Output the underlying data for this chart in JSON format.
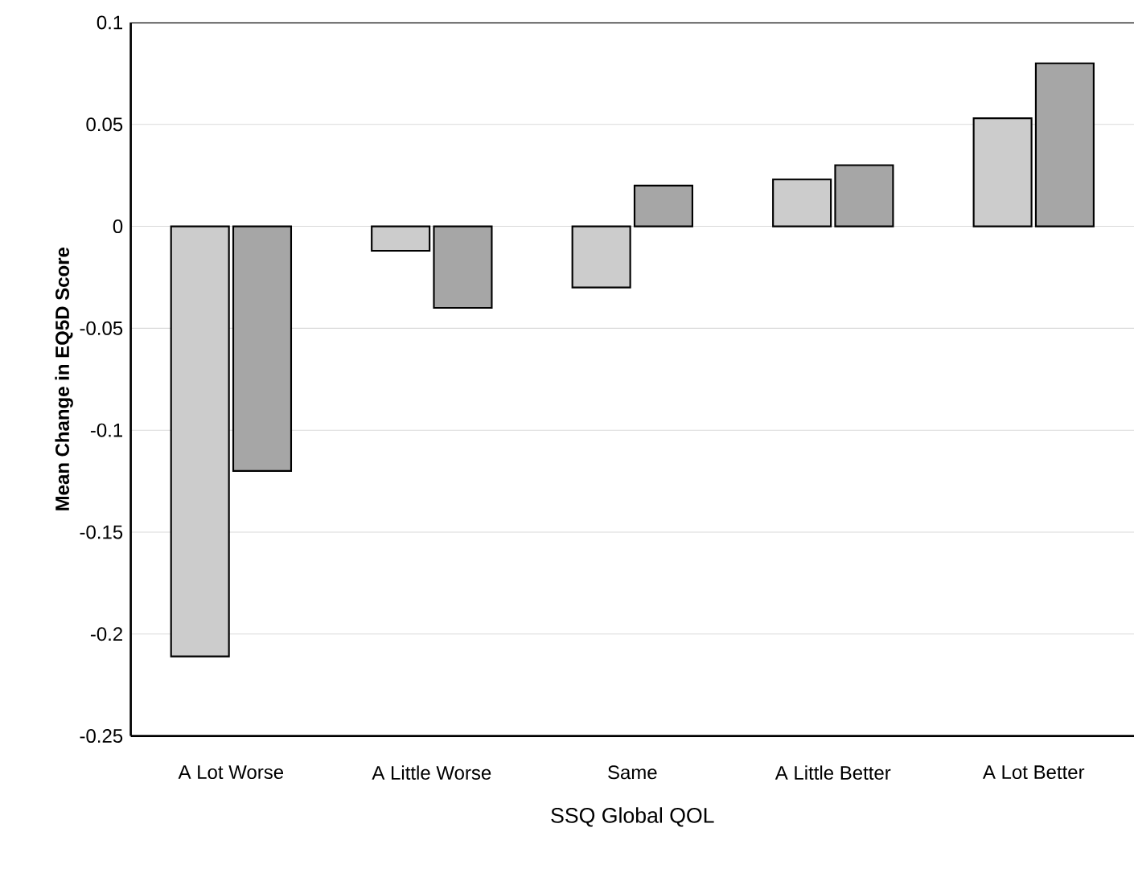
{
  "chart_data": {
    "type": "bar",
    "xlabel": "SSQ Global QOL",
    "ylabel": "Mean Change in EQ5D Score",
    "categories": [
      "A Lot Worse",
      "A Little Worse",
      "Same",
      "A Little Better",
      "A Lot Better"
    ],
    "series": [
      {
        "color": "#cccccc",
        "values": [
          -0.211,
          -0.012,
          -0.03,
          0.023,
          0.053
        ]
      },
      {
        "color": "#a6a6a6",
        "values": [
          -0.12,
          -0.04,
          0.02,
          0.03,
          0.08
        ]
      }
    ],
    "ylim": [
      -0.25,
      0.1
    ],
    "yticks": [
      -0.25,
      -0.2,
      -0.15,
      -0.1,
      -0.05,
      0,
      0.05,
      0.1
    ],
    "grid": "y"
  }
}
